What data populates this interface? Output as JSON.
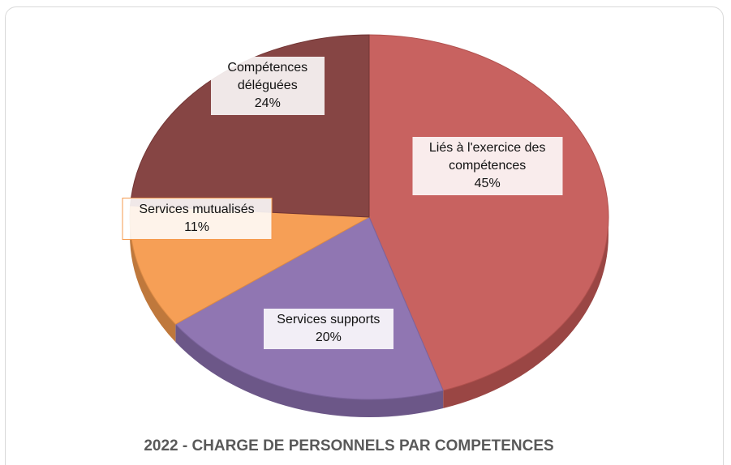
{
  "chart_data": {
    "type": "pie",
    "title": "2022 - CHARGE DE PERSONNELS PAR COMPETENCES",
    "categories": [
      "Liés à l'exercice des compétences",
      "Services supports",
      "Services mutualisés",
      "Compétences déléguées"
    ],
    "values": [
      45,
      20,
      11,
      24
    ],
    "value_labels": [
      "45%",
      "20%",
      "11%",
      "24%"
    ],
    "colors": [
      "#c55a57",
      "#8a6fae",
      "#f59a4d",
      "#7f3b3a"
    ]
  }
}
